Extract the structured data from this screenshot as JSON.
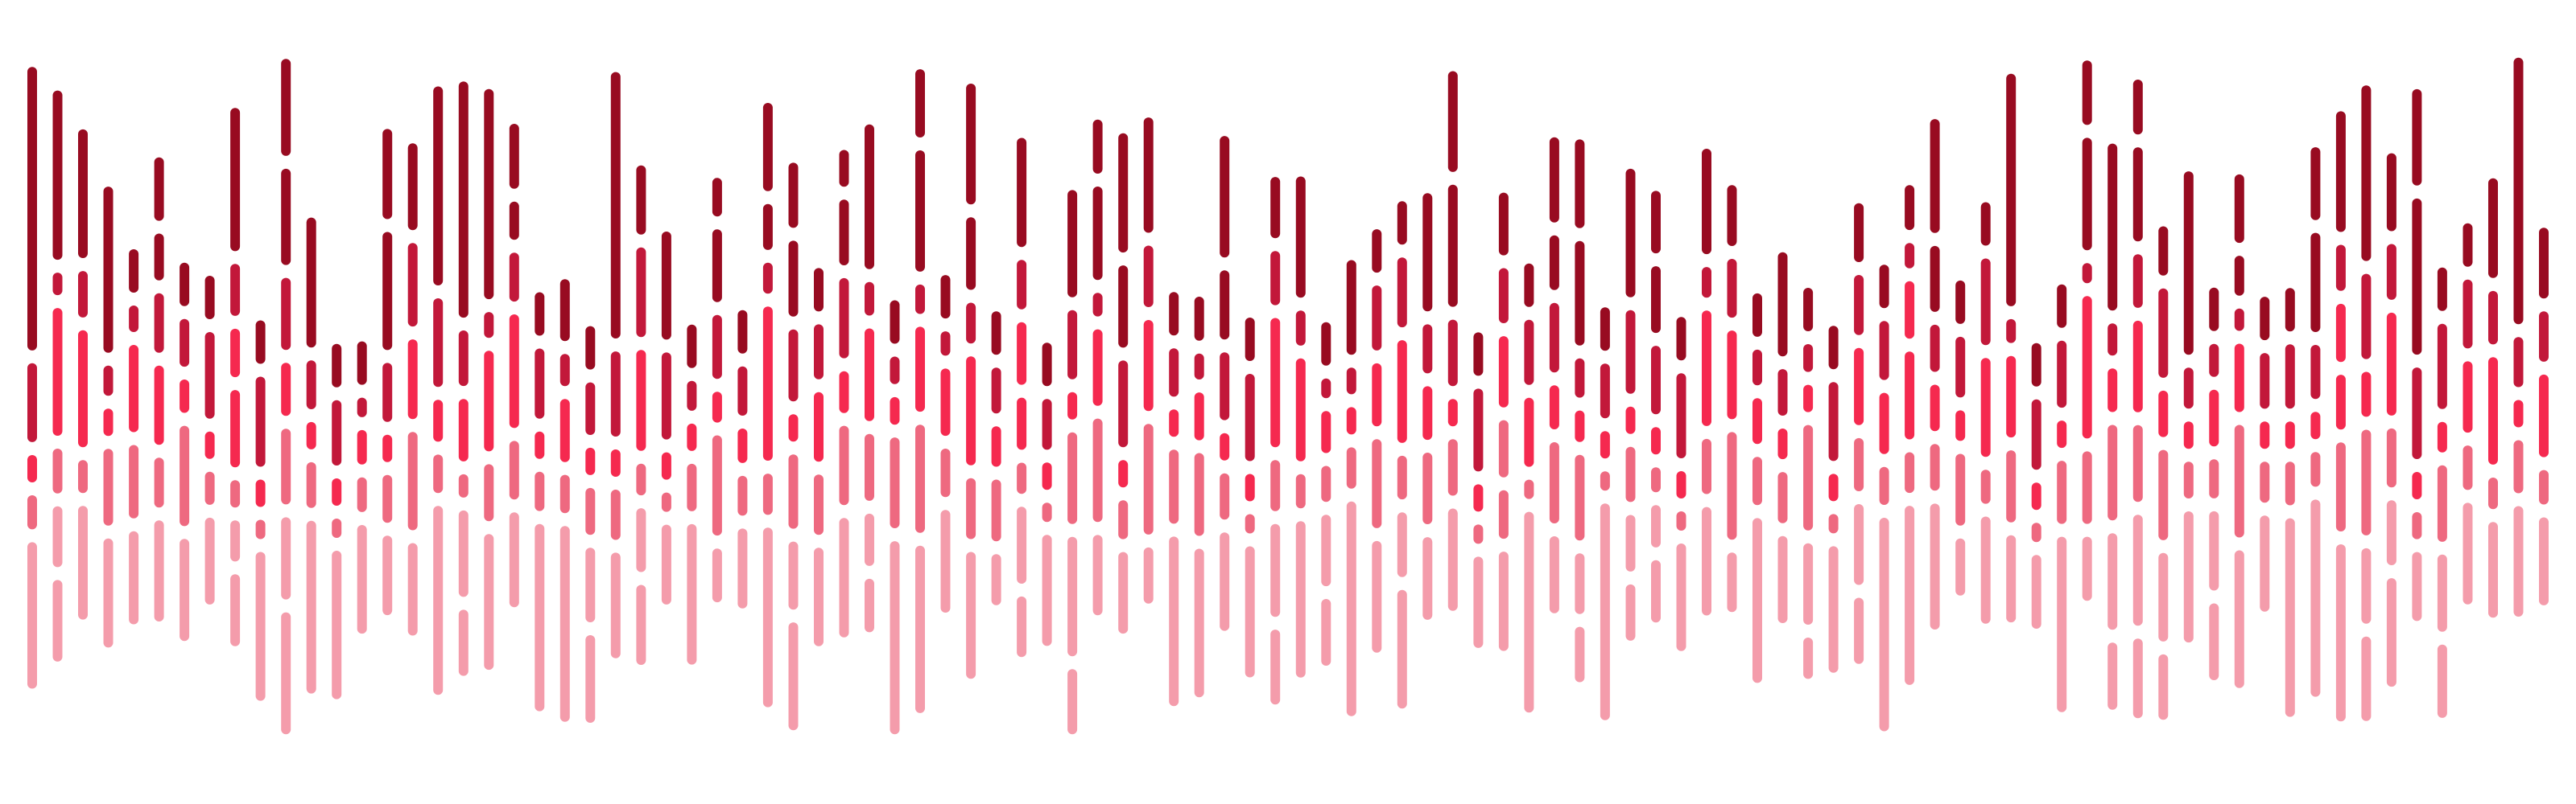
{
  "artwork": {
    "background": "#ffffff",
    "palette": [
      "#980b21",
      "#c2183a",
      "#f5294f",
      "#ee6980",
      "#f49cab"
    ],
    "bar_count": 100
  }
}
